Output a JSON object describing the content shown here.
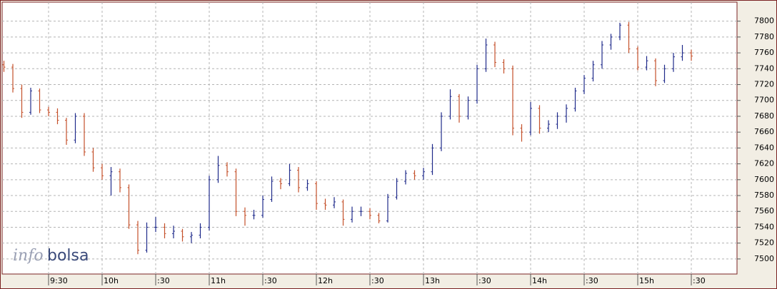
{
  "chart_data": {
    "type": "ohlc",
    "logo": [
      "info",
      "bolsa"
    ],
    "up_color": "#1f2a8a",
    "down_color": "#c4502a",
    "grid": true,
    "xlim": [
      544,
      955.6
    ],
    "ylim": [
      7481,
      7824
    ],
    "xticks": [
      {
        "value": 570,
        "label": "9:30"
      },
      {
        "value": 600,
        "label": "10h"
      },
      {
        "value": 630,
        "label": ":30"
      },
      {
        "value": 660,
        "label": "11h"
      },
      {
        "value": 690,
        "label": ":30"
      },
      {
        "value": 720,
        "label": "12h"
      },
      {
        "value": 750,
        "label": ":30"
      },
      {
        "value": 780,
        "label": "13h"
      },
      {
        "value": 810,
        "label": ":30"
      },
      {
        "value": 840,
        "label": "14h"
      },
      {
        "value": 870,
        "label": ":30"
      },
      {
        "value": 900,
        "label": "15h"
      },
      {
        "value": 930,
        "label": ":30"
      }
    ],
    "yticks": [
      7500,
      7520,
      7540,
      7560,
      7580,
      7600,
      7620,
      7640,
      7660,
      7680,
      7700,
      7720,
      7740,
      7760,
      7780,
      7800
    ],
    "x": [
      545,
      550,
      555,
      560,
      565,
      570,
      575,
      580,
      585,
      590,
      595,
      600,
      605,
      610,
      615,
      620,
      625,
      630,
      635,
      640,
      645,
      650,
      655,
      660,
      665,
      670,
      675,
      680,
      685,
      690,
      695,
      700,
      705,
      710,
      715,
      720,
      725,
      730,
      735,
      740,
      745,
      750,
      755,
      760,
      765,
      770,
      775,
      780,
      785,
      790,
      795,
      800,
      805,
      810,
      815,
      820,
      825,
      830,
      835,
      840,
      845,
      850,
      855,
      860,
      865,
      870,
      875,
      880,
      885,
      890,
      895,
      900,
      905,
      910,
      915,
      920,
      925,
      930
    ],
    "open": [
      7745,
      7742,
      7715,
      7685,
      7712,
      7688,
      7685,
      7675,
      7650,
      7680,
      7635,
      7615,
      7605,
      7610,
      7590,
      7543,
      7511,
      7540,
      7540,
      7532,
      7535,
      7528,
      7530,
      7540,
      7600,
      7618,
      7610,
      7560,
      7555,
      7555,
      7575,
      7598,
      7595,
      7612,
      7590,
      7595,
      7570,
      7568,
      7572,
      7550,
      7560,
      7560,
      7555,
      7548,
      7578,
      7598,
      7608,
      7605,
      7610,
      7640,
      7680,
      7705,
      7680,
      7700,
      7740,
      7770,
      7748,
      7740,
      7665,
      7660,
      7690,
      7665,
      7670,
      7680,
      7690,
      7712,
      7728,
      7745,
      7770,
      7780,
      7795,
      7765,
      7742,
      7750,
      7725,
      7740,
      7755,
      7760
    ],
    "high": [
      7750,
      7746,
      7720,
      7716,
      7715,
      7692,
      7690,
      7678,
      7684,
      7684,
      7640,
      7620,
      7616,
      7614,
      7594,
      7548,
      7546,
      7553,
      7545,
      7542,
      7538,
      7534,
      7545,
      7605,
      7630,
      7622,
      7614,
      7565,
      7562,
      7580,
      7604,
      7602,
      7620,
      7616,
      7600,
      7598,
      7576,
      7578,
      7575,
      7566,
      7566,
      7564,
      7558,
      7582,
      7602,
      7612,
      7612,
      7615,
      7645,
      7685,
      7714,
      7708,
      7705,
      7745,
      7778,
      7774,
      7752,
      7744,
      7670,
      7698,
      7694,
      7675,
      7685,
      7695,
      7716,
      7732,
      7750,
      7775,
      7784,
      7798,
      7799,
      7768,
      7756,
      7753,
      7745,
      7760,
      7770,
      7764
    ],
    "low": [
      7736,
      7710,
      7678,
      7682,
      7684,
      7680,
      7670,
      7644,
      7646,
      7630,
      7610,
      7600,
      7580,
      7584,
      7538,
      7506,
      7508,
      7534,
      7526,
      7526,
      7522,
      7520,
      7526,
      7536,
      7596,
      7604,
      7554,
      7542,
      7550,
      7552,
      7572,
      7588,
      7592,
      7584,
      7586,
      7562,
      7562,
      7564,
      7542,
      7546,
      7554,
      7550,
      7545,
      7546,
      7575,
      7594,
      7600,
      7600,
      7606,
      7636,
      7676,
      7672,
      7676,
      7696,
      7736,
      7742,
      7734,
      7656,
      7648,
      7656,
      7658,
      7660,
      7664,
      7672,
      7686,
      7708,
      7724,
      7740,
      7764,
      7776,
      7760,
      7738,
      7738,
      7718,
      7722,
      7736,
      7750,
      7750
    ],
    "close": [
      7742,
      7715,
      7685,
      7712,
      7688,
      7685,
      7675,
      7650,
      7680,
      7635,
      7615,
      7605,
      7610,
      7590,
      7543,
      7511,
      7540,
      7540,
      7532,
      7535,
      7528,
      7530,
      7540,
      7600,
      7618,
      7610,
      7560,
      7555,
      7555,
      7575,
      7598,
      7595,
      7612,
      7590,
      7595,
      7570,
      7568,
      7572,
      7550,
      7560,
      7560,
      7555,
      7548,
      7578,
      7598,
      7608,
      7605,
      7610,
      7640,
      7680,
      7705,
      7680,
      7700,
      7740,
      7770,
      7748,
      7740,
      7665,
      7660,
      7690,
      7665,
      7670,
      7680,
      7690,
      7712,
      7728,
      7745,
      7770,
      7780,
      7795,
      7765,
      7742,
      7750,
      7725,
      7740,
      7755,
      7760,
      7756
    ]
  }
}
